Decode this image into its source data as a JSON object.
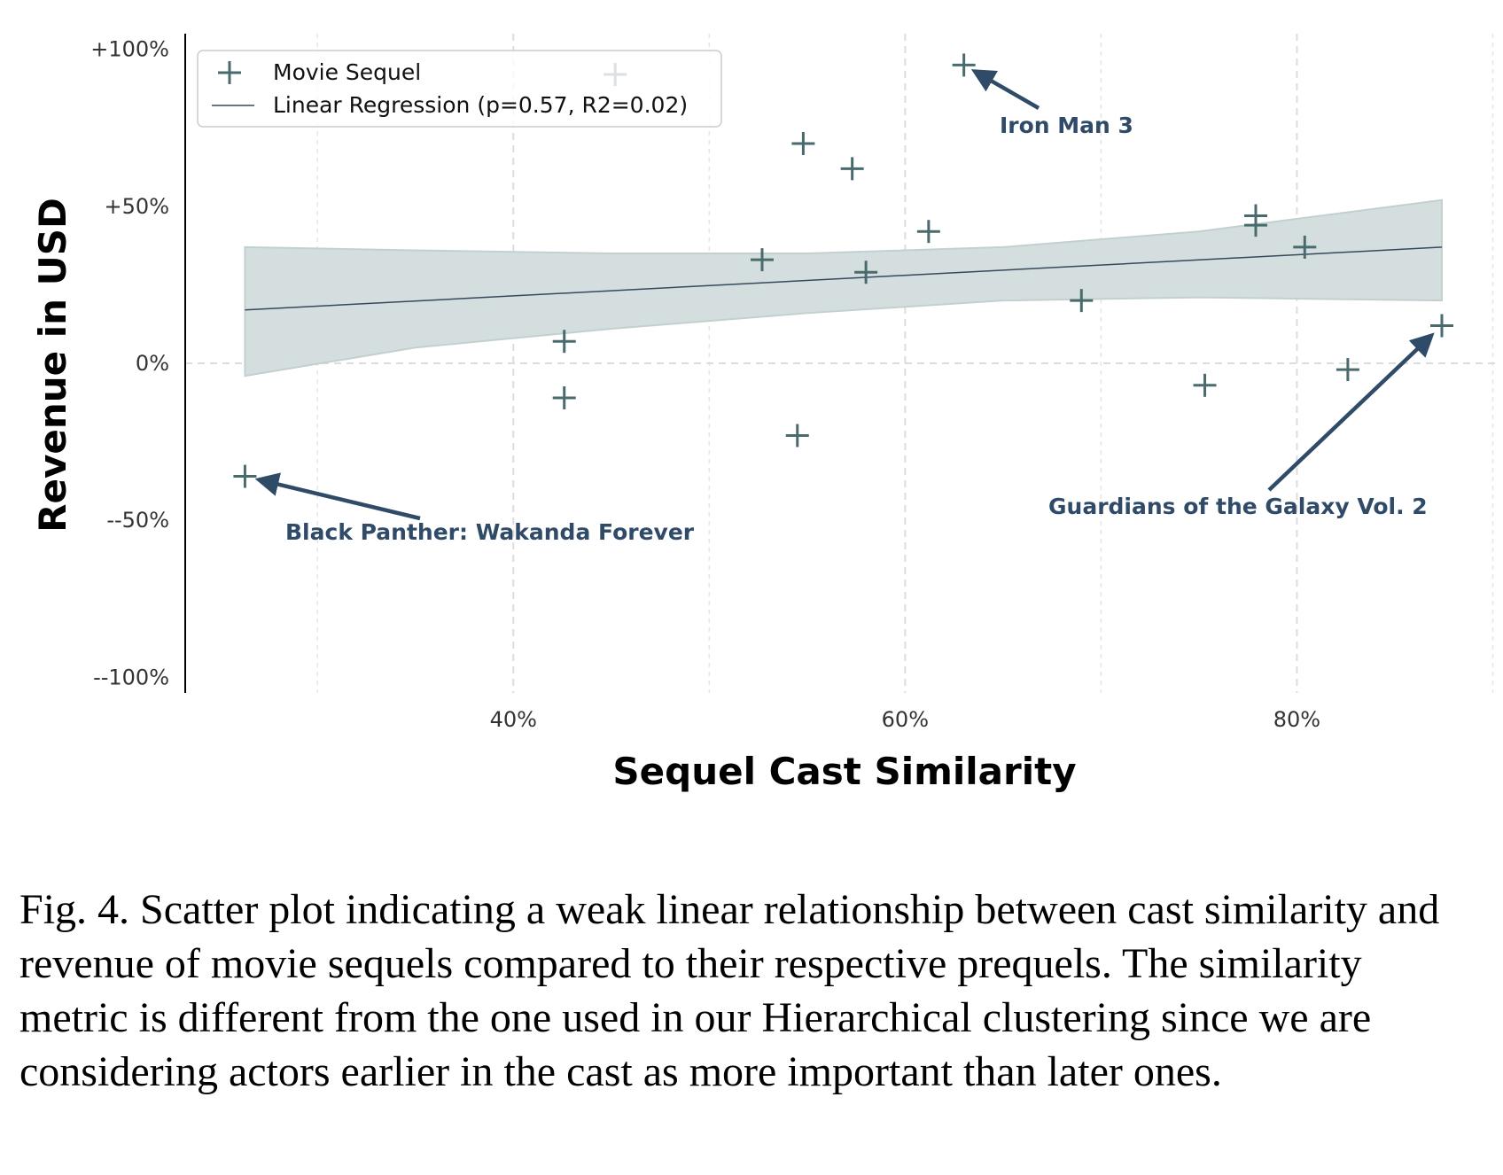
{
  "chart_data": {
    "type": "scatter",
    "xlabel": "Sequel Cast Similarity",
    "ylabel": "Revenue in USD",
    "xlim": [
      0.2325,
      0.9025
    ],
    "ylim": [
      -1.05,
      1.05
    ],
    "x_ticks": [
      {
        "value": 0.4,
        "label": "40%"
      },
      {
        "value": 0.6,
        "label": "60%"
      },
      {
        "value": 0.8,
        "label": "80%"
      }
    ],
    "x_minor_ticks": [
      0.3,
      0.5,
      0.7,
      0.9
    ],
    "y_ticks": [
      {
        "value": 1.0,
        "label": "+100%"
      },
      {
        "value": 0.5,
        "label": "+50%"
      },
      {
        "value": 0.0,
        "label": "0%"
      },
      {
        "value": -0.5,
        "label": "--50%"
      },
      {
        "value": -1.0,
        "label": "--100%"
      }
    ],
    "grid": true,
    "colors": {
      "points": "#4a6b6e",
      "regression": "#34495e",
      "band": "#d5dede",
      "annotation": "#2f4b68",
      "grid": "#dddddd"
    },
    "series": [
      {
        "name": "Movie Sequel",
        "marker": "plus",
        "points": [
          {
            "x": 0.263,
            "y": -0.36
          },
          {
            "x": 0.426,
            "y": 0.07
          },
          {
            "x": 0.426,
            "y": -0.11
          },
          {
            "x": 0.452,
            "y": 0.92
          },
          {
            "x": 0.527,
            "y": 0.33
          },
          {
            "x": 0.548,
            "y": 0.7
          },
          {
            "x": 0.545,
            "y": -0.23
          },
          {
            "x": 0.573,
            "y": 0.62
          },
          {
            "x": 0.58,
            "y": 0.29
          },
          {
            "x": 0.612,
            "y": 0.42
          },
          {
            "x": 0.63,
            "y": 0.95
          },
          {
            "x": 0.69,
            "y": 0.2
          },
          {
            "x": 0.753,
            "y": -0.07
          },
          {
            "x": 0.779,
            "y": 0.44
          },
          {
            "x": 0.779,
            "y": 0.47
          },
          {
            "x": 0.804,
            "y": 0.37
          },
          {
            "x": 0.826,
            "y": -0.02
          },
          {
            "x": 0.874,
            "y": 0.12
          }
        ]
      },
      {
        "name": "Linear Regression (p=0.57, R2=0.02)",
        "type": "line",
        "x": [
          0.263,
          0.874
        ],
        "y": [
          0.17,
          0.37
        ],
        "confidence_band": {
          "x": [
            0.263,
            0.35,
            0.45,
            0.55,
            0.65,
            0.75,
            0.874
          ],
          "upper": [
            0.37,
            0.36,
            0.35,
            0.35,
            0.37,
            0.42,
            0.52
          ],
          "lower": [
            -0.04,
            0.05,
            0.11,
            0.16,
            0.2,
            0.21,
            0.2
          ]
        }
      }
    ],
    "legend": {
      "position": "top-left",
      "entries": [
        "Movie Sequel",
        "Linear Regression (p=0.57, R2=0.02)"
      ]
    },
    "annotations": [
      {
        "text": "Iron Man 3",
        "x": 0.63,
        "y": 0.95,
        "text_x": 0.677,
        "text_y": 0.77
      },
      {
        "text": "Black Panther: Wakanda Forever",
        "x": 0.263,
        "y": -0.36,
        "text_x": 0.282,
        "text_y": -0.54
      },
      {
        "text": "Guardians of the Galaxy Vol. 2",
        "x": 0.874,
        "y": 0.12,
        "text_x": 0.605,
        "text_y": -0.46
      }
    ]
  },
  "caption": "Fig. 4.  Scatter plot indicating a weak linear relationship between cast similarity and revenue of movie sequels compared to their respective prequels. The similarity metric is different from the one used in our Hierarchical clustering since we are considering actors earlier in the cast as more important than later ones."
}
